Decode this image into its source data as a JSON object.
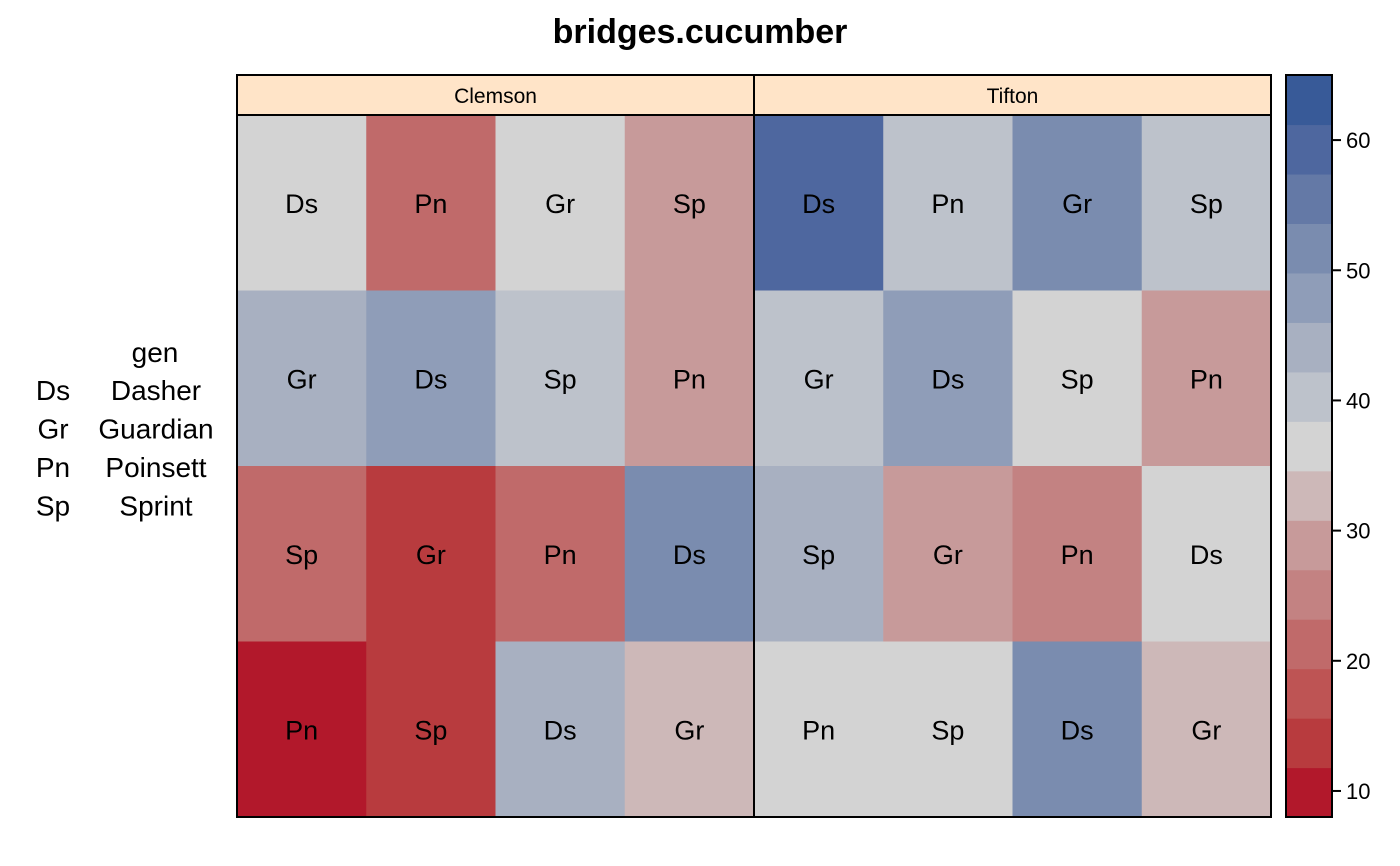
{
  "chart_data": {
    "type": "heatmap",
    "title": "bridges.cucumber",
    "panels": [
      {
        "name": "Clemson",
        "rows": [
          [
            "Ds",
            "Pn",
            "Gr",
            "Sp"
          ],
          [
            "Gr",
            "Ds",
            "Sp",
            "Pn"
          ],
          [
            "Sp",
            "Gr",
            "Pn",
            "Ds"
          ],
          [
            "Pn",
            "Sp",
            "Ds",
            "Gr"
          ]
        ],
        "values": [
          [
            37,
            20,
            37,
            29
          ],
          [
            44,
            48,
            41,
            29
          ],
          [
            21,
            14,
            21,
            53
          ],
          [
            8,
            14,
            44,
            33
          ]
        ]
      },
      {
        "name": "Tifton",
        "rows": [
          [
            "Ds",
            "Pn",
            "Gr",
            "Sp"
          ],
          [
            "Gr",
            "Ds",
            "Sp",
            "Pn"
          ],
          [
            "Sp",
            "Gr",
            "Pn",
            "Ds"
          ],
          [
            "Pn",
            "Sp",
            "Ds",
            "Gr"
          ]
        ],
        "values": [
          [
            61,
            41,
            51,
            41
          ],
          [
            41,
            48,
            37,
            29
          ],
          [
            44,
            29,
            25,
            37
          ],
          [
            37,
            37,
            51,
            33
          ]
        ]
      }
    ],
    "key": {
      "title": "gen",
      "entries": [
        {
          "code": "Ds",
          "name": "Dasher"
        },
        {
          "code": "Gr",
          "name": "Guardian"
        },
        {
          "code": "Pn",
          "name": "Poinsett"
        },
        {
          "code": "Sp",
          "name": "Sprint"
        }
      ]
    },
    "colorbar": {
      "range": [
        8,
        65
      ],
      "ticks": [
        10,
        20,
        30,
        40,
        50,
        60
      ],
      "colors": [
        "#B2182B",
        "#B83B3E",
        "#BE5454",
        "#C06A6A",
        "#C38282",
        "#C79A9A",
        "#CDB8B8",
        "#D3D3D3",
        "#BDC2CB",
        "#A8B0C1",
        "#8F9DB8",
        "#7A8CAF",
        "#6479A6",
        "#4E679F",
        "#385A98"
      ]
    },
    "strip_color": "#FFE4C8"
  }
}
